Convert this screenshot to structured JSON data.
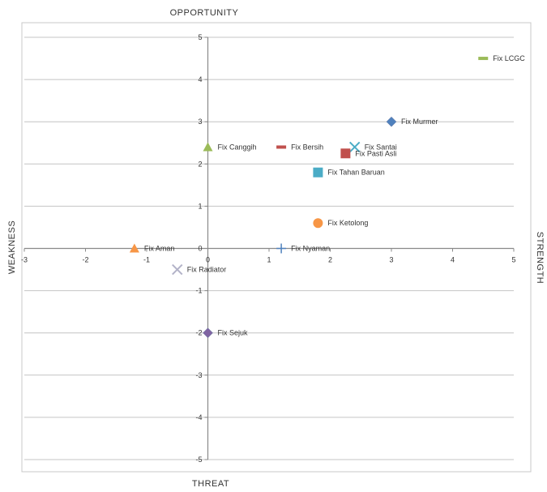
{
  "chart_data": {
    "type": "scatter",
    "title": "",
    "axis_labels": {
      "top": "OPPORTUNITY",
      "bottom": "THREAT",
      "left": "WEAKNESS",
      "right": "STRENGTH"
    },
    "xlim": [
      -3,
      5
    ],
    "ylim": [
      -5,
      5
    ],
    "x_ticks": [
      "-3",
      "-2",
      "-1",
      "0",
      "1",
      "2",
      "3",
      "4",
      "5"
    ],
    "y_ticks": [
      "5",
      "4",
      "3",
      "2",
      "1",
      "0",
      "-1",
      "-2",
      "-3",
      "-4",
      "-5"
    ],
    "grid": "horizontal",
    "legend": "none",
    "points": [
      {
        "label": "Fix LCGC",
        "x": 4.5,
        "y": 4.5,
        "marker": "dash",
        "color": "#9bbb59"
      },
      {
        "label": "Fix Murmer",
        "x": 3.0,
        "y": 3.0,
        "marker": "diamond",
        "color": "#4f81bd"
      },
      {
        "label": "Fix Canggih",
        "x": 0.0,
        "y": 2.4,
        "marker": "triangle",
        "color": "#9bbb59"
      },
      {
        "label": "Fix Bersih",
        "x": 1.2,
        "y": 2.4,
        "marker": "dash",
        "color": "#c0504d"
      },
      {
        "label": "Fix Santai",
        "x": 2.4,
        "y": 2.4,
        "marker": "x",
        "color": "#4bacc6"
      },
      {
        "label": "Fix Pasti Asli",
        "x": 2.25,
        "y": 2.25,
        "marker": "square",
        "color": "#c0504d"
      },
      {
        "label": "Fix Tahan Baruan",
        "x": 1.8,
        "y": 1.8,
        "marker": "square",
        "color": "#4bacc6"
      },
      {
        "label": "Fix Ketolong",
        "x": 1.8,
        "y": 0.6,
        "marker": "circle",
        "color": "#f79646"
      },
      {
        "label": "Fix Nyaman",
        "x": 1.2,
        "y": 0.0,
        "marker": "plus",
        "color": "#4f81bd"
      },
      {
        "label": "Fix Aman",
        "x": -1.2,
        "y": 0.0,
        "marker": "triangle",
        "color": "#f79646"
      },
      {
        "label": "Fix Radiator",
        "x": -0.5,
        "y": -0.5,
        "marker": "x",
        "color": "#b3b3c8"
      },
      {
        "label": "Fix Sejuk",
        "x": 0.0,
        "y": -2.0,
        "marker": "diamond",
        "color": "#8064a2"
      }
    ]
  }
}
